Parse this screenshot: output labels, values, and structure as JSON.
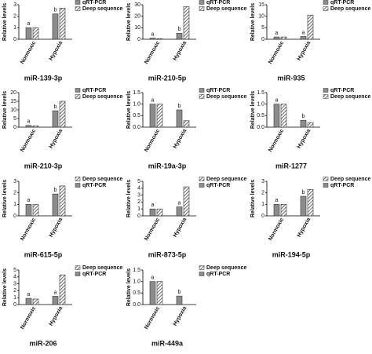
{
  "chart_data": [
    {
      "type": "bar",
      "title": "miR-139-3p",
      "y_label": "Relative levels",
      "categories": [
        "Normoxic",
        "Hypoxia"
      ],
      "ylim": [
        0,
        3
      ],
      "yticks": [
        0,
        1,
        2,
        3
      ],
      "series": [
        {
          "name": "qRT-PCR",
          "color": "#8c8c8c",
          "values": [
            1.0,
            2.2
          ],
          "annotations": [
            "a",
            "b"
          ]
        },
        {
          "name": "Deep sequence",
          "color": "#c8c8c8",
          "hatch": true,
          "values": [
            1.0,
            2.7
          ]
        }
      ]
    },
    {
      "type": "bar",
      "title": "miR-210-5p",
      "y_label": "Relative levels",
      "categories": [
        "Normoxic",
        "Hypoxia"
      ],
      "ylim": [
        0,
        30
      ],
      "yticks": [
        0,
        10,
        20,
        30
      ],
      "series": [
        {
          "name": "qRT-PCR",
          "color": "#8c8c8c",
          "values": [
            1.0,
            5.2
          ],
          "annotations": [
            "a",
            "b"
          ]
        },
        {
          "name": "Deep sequence",
          "color": "#c8c8c8",
          "hatch": true,
          "values": [
            0.5,
            28.5
          ]
        }
      ]
    },
    {
      "type": "bar",
      "title": "miR-935",
      "y_label": "Relative levels",
      "categories": [
        "Normoxic",
        "Hypoxia"
      ],
      "ylim": [
        0,
        15
      ],
      "yticks": [
        0,
        5,
        10,
        15
      ],
      "series": [
        {
          "name": "qRT-PCR",
          "color": "#8c8c8c",
          "values": [
            1.0,
            1.2
          ],
          "annotations": [
            "a",
            "a"
          ]
        },
        {
          "name": "Deep sequence",
          "color": "#c8c8c8",
          "hatch": true,
          "values": [
            1.0,
            10.5
          ]
        }
      ]
    },
    {
      "type": "bar",
      "title": "miR-210-3p",
      "y_label": "Relative levels",
      "categories": [
        "Normoxic",
        "Hypoxia"
      ],
      "ylim": [
        0,
        20
      ],
      "yticks": [
        0,
        5,
        10,
        15,
        20
      ],
      "series": [
        {
          "name": "qRT-PCR",
          "color": "#8c8c8c",
          "values": [
            1.0,
            9.5
          ],
          "annotations": [
            "a",
            "b"
          ]
        },
        {
          "name": "Deep sequence",
          "color": "#c8c8c8",
          "hatch": true,
          "values": [
            0.8,
            15.0
          ]
        }
      ]
    },
    {
      "type": "bar",
      "title": "miR-19a-3p",
      "y_label": "Relative levels",
      "categories": [
        "Normoxic",
        "Hypoxia"
      ],
      "ylim": [
        0,
        1.5
      ],
      "yticks": [
        {
          "value": 0,
          "label": "0.0"
        },
        0.5,
        {
          "value": 1,
          "label": "1.0"
        },
        1.5
      ],
      "series": [
        {
          "name": "qRT-PCR",
          "color": "#8c8c8c",
          "values": [
            1.0,
            0.75
          ],
          "annotations": [
            "a",
            "b"
          ]
        },
        {
          "name": "Deep sequence",
          "color": "#c8c8c8",
          "hatch": true,
          "values": [
            1.0,
            0.28
          ]
        }
      ]
    },
    {
      "type": "bar",
      "title": "miR-1277",
      "y_label": "Relative levels",
      "categories": [
        "Normoxic",
        "Hypoxia"
      ],
      "ylim": [
        0,
        1.5
      ],
      "yticks": [
        {
          "value": 0,
          "label": "0.0"
        },
        0.5,
        {
          "value": 1,
          "label": "1.0"
        },
        1.5
      ],
      "series": [
        {
          "name": "qRT-PCR",
          "color": "#8c8c8c",
          "values": [
            1.0,
            0.3
          ],
          "annotations": [
            "a",
            "b"
          ]
        },
        {
          "name": "Deep sequence",
          "color": "#c8c8c8",
          "hatch": true,
          "values": [
            1.0,
            0.2
          ]
        }
      ]
    },
    {
      "type": "bar",
      "title": "miR-615-5p",
      "y_label": "Relative levels",
      "categories": [
        "Normoxic",
        "Hypoxia"
      ],
      "ylim": [
        0,
        3
      ],
      "yticks": [
        0,
        1,
        2,
        3
      ],
      "series": [
        {
          "name": "Deep sequence",
          "color": "#c8c8c8",
          "hatch": true,
          "values": [
            1.0,
            2.6
          ]
        },
        {
          "name": "qRT-PCR",
          "color": "#8c8c8c",
          "values": [
            1.0,
            1.9
          ],
          "annotations": [
            "a",
            "b"
          ]
        }
      ]
    },
    {
      "type": "bar",
      "title": "miR-873-5p",
      "y_label": "Relative levels",
      "categories": [
        "Normoxic",
        "Hypoxia"
      ],
      "ylim": [
        0,
        5
      ],
      "yticks": [
        0,
        1,
        2,
        3,
        4,
        5
      ],
      "series": [
        {
          "name": "Deep sequence",
          "color": "#c8c8c8",
          "hatch": true,
          "values": [
            1.0,
            4.2
          ]
        },
        {
          "name": "qRT-PCR",
          "color": "#8c8c8c",
          "values": [
            1.0,
            1.3
          ],
          "annotations": [
            "a",
            "a"
          ]
        }
      ]
    },
    {
      "type": "bar",
      "title": "miR-194-5p",
      "y_label": "Relative levels",
      "categories": [
        "Normoxic",
        "Hypoxia"
      ],
      "ylim": [
        0,
        3
      ],
      "yticks": [
        0,
        1,
        2,
        3
      ],
      "series": [
        {
          "name": "Deep sequence",
          "color": "#c8c8c8",
          "hatch": true,
          "values": [
            1.0,
            2.3
          ]
        },
        {
          "name": "qRT-PCR",
          "color": "#8c8c8c",
          "values": [
            1.0,
            1.7
          ],
          "annotations": [
            "a",
            "b"
          ]
        }
      ]
    },
    {
      "type": "bar",
      "title": "miR-206",
      "y_label": "Relative levels",
      "categories": [
        "Normoxic",
        "Hypoxia"
      ],
      "ylim": [
        0,
        5
      ],
      "yticks": [
        0,
        1,
        2,
        3,
        4,
        5
      ],
      "series": [
        {
          "name": "Deep sequence",
          "color": "#c8c8c8",
          "hatch": true,
          "values": [
            0.8,
            4.3
          ]
        },
        {
          "name": "qRT-PCR",
          "color": "#8c8c8c",
          "values": [
            0.9,
            1.2
          ],
          "annotations": [
            "a",
            "a"
          ]
        }
      ]
    },
    {
      "type": "bar",
      "title": "miR-449a",
      "y_label": "Relative levels",
      "categories": [
        "Normoxic",
        "Hypoxia"
      ],
      "ylim": [
        0,
        1.5
      ],
      "yticks": [
        {
          "value": 0,
          "label": "0.0"
        },
        0.5,
        {
          "value": 1,
          "label": "1.0"
        },
        1.5
      ],
      "series": [
        {
          "name": "Deep sequence",
          "color": "#c8c8c8",
          "hatch": true,
          "values": [
            1.0,
            null
          ]
        },
        {
          "name": "qRT-PCR",
          "color": "#8c8c8c",
          "values": [
            1.0,
            0.37
          ],
          "annotations": [
            "a",
            "b"
          ]
        }
      ]
    }
  ]
}
